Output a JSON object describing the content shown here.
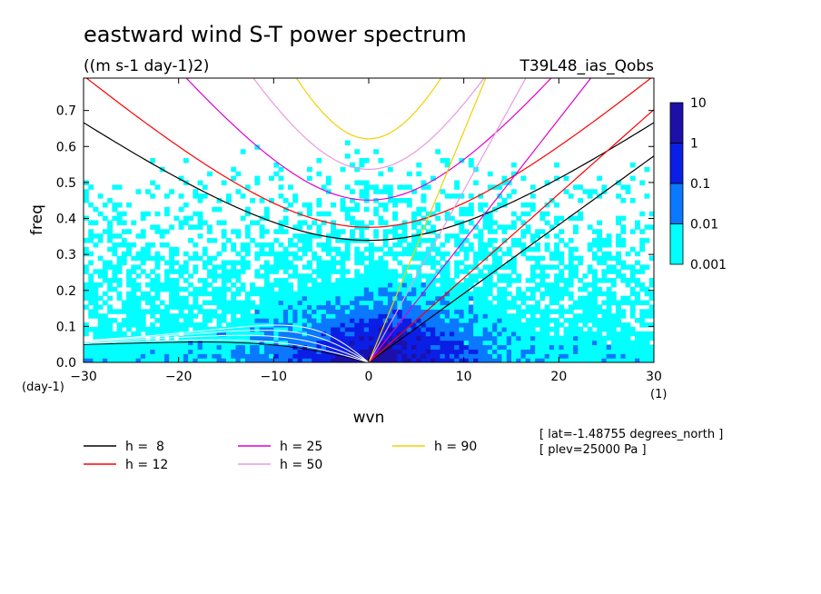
{
  "chart_data": {
    "type": "heatmap",
    "title": "eastward wind S-T power spectrum",
    "subtitle": "((m s-1 day-1)2)",
    "experiment": "T39L48_ias_Qobs",
    "xlabel": "wvn",
    "ylabel": "freq",
    "x_unit": "(1)",
    "y_unit": "(day-1)",
    "xlim": [
      -30,
      30
    ],
    "ylim": [
      0,
      0.79
    ],
    "xticks": [
      "−30",
      "−20",
      "−10",
      "0",
      "10",
      "20",
      "30"
    ],
    "yticks": [
      "0.0",
      "0.1",
      "0.2",
      "0.3",
      "0.4",
      "0.5",
      "0.6",
      "0.7"
    ],
    "xtick_values": [
      -30,
      -20,
      -10,
      0,
      10,
      20,
      30
    ],
    "ytick_values": [
      0,
      0.1,
      0.2,
      0.3,
      0.4,
      0.5,
      0.6,
      0.7
    ],
    "colorbar": {
      "scale": "log",
      "levels": [
        "0.001",
        "0.01",
        "0.1",
        "1",
        "10"
      ],
      "level_values": [
        0.001,
        0.01,
        0.1,
        1,
        10
      ],
      "colors": [
        "#00ffff",
        "#0a78ff",
        "#0a1ee6",
        "#1c10a8"
      ]
    },
    "dispersion_curves": [
      {
        "label": "h =  8",
        "h": 8,
        "color": "#000000"
      },
      {
        "label": "h = 12",
        "h": 12,
        "color": "#ff0000"
      },
      {
        "label": "h = 25",
        "h": 25,
        "color": "#e000d0"
      },
      {
        "label": "h = 50",
        "h": 50,
        "color": "#e89ae0"
      },
      {
        "label": "h = 90",
        "h": 90,
        "color": "#f2d000"
      }
    ],
    "annotations": [
      "[ lat=-1.48755 degrees_north ]",
      "[ plev=25000 Pa ]"
    ]
  }
}
